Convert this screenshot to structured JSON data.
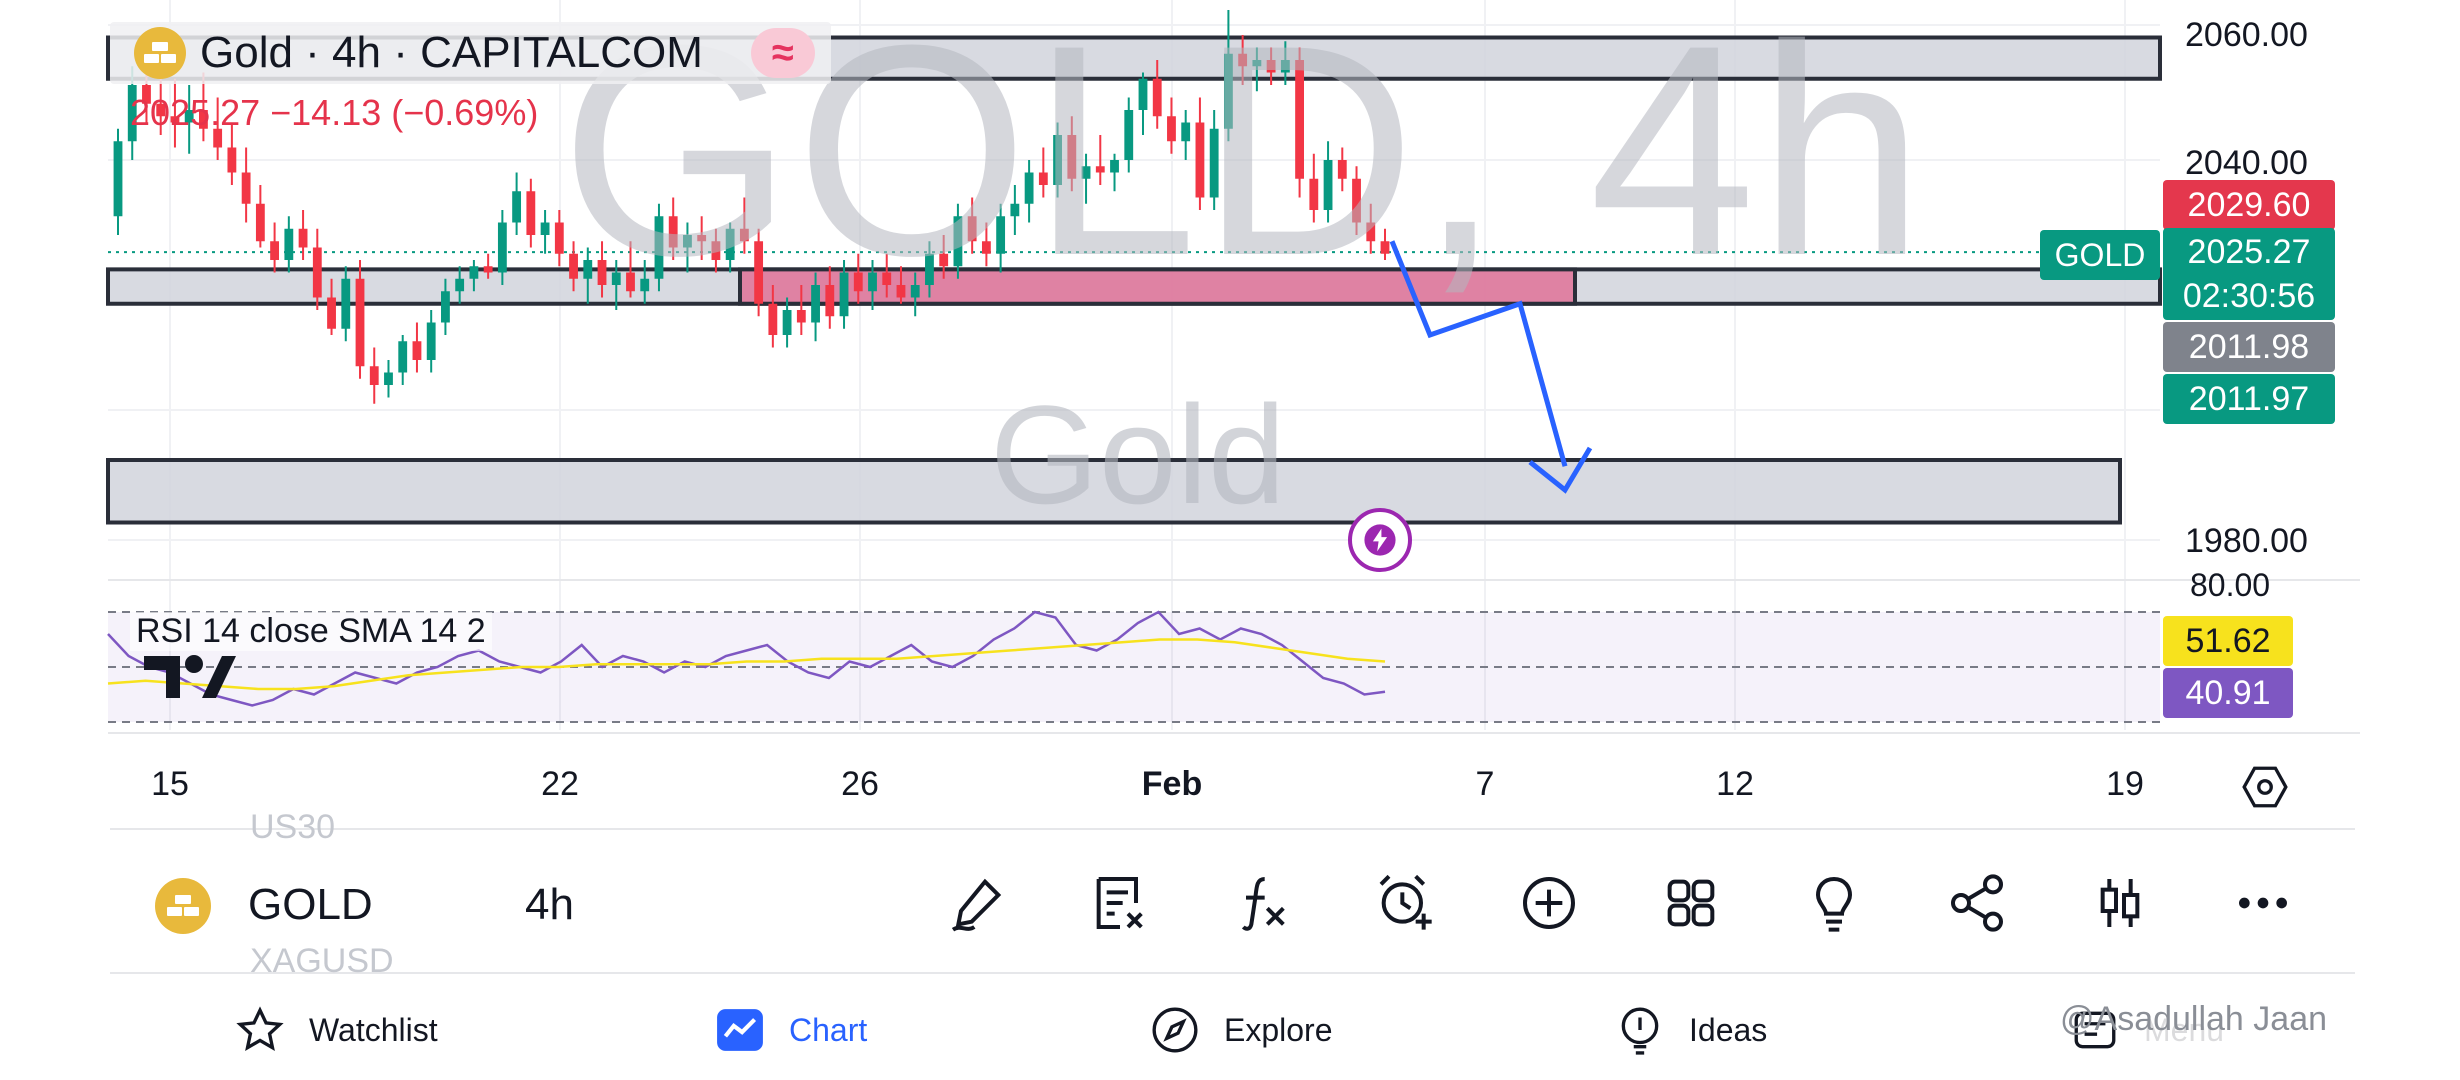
{
  "header": {
    "symbol_title": "Gold · 4h · CAPITALCOM",
    "exchange_badge": "≈",
    "price_change": "2025.27  −14.13 (−0.69%)"
  },
  "watermark": {
    "main": "GOLD, 4h",
    "sub": "Gold"
  },
  "price_scale": {
    "ticks": [
      "2060.00",
      "2040.00",
      "1980.00"
    ],
    "bid_price": "2029.60",
    "last_price": "2025.27",
    "countdown": "02:30:56",
    "symbol_tag": "GOLD",
    "gray_level": "2011.98",
    "green_level": "2011.97"
  },
  "rsi": {
    "label": "RSI 14 close SMA 14 2",
    "top_tick": "80.00",
    "sma_value": "51.62",
    "rsi_value": "40.91"
  },
  "time_axis": {
    "labels": [
      "15",
      "22",
      "26",
      "Feb",
      "7",
      "12",
      "19"
    ]
  },
  "toolbar": {
    "symbol": "GOLD",
    "interval": "4h",
    "ghost_above": "US30",
    "ghost_below": "XAGUSD",
    "icons": [
      "draw-icon",
      "object-tree-icon",
      "indicators-icon",
      "alert-icon",
      "add-icon",
      "layouts-icon",
      "ideas-bulb-icon",
      "share-icon",
      "chart-type-icon",
      "more-icon"
    ]
  },
  "nav": {
    "watchlist": "Watchlist",
    "chart": "Chart",
    "explore": "Explore",
    "ideas": "Ideas",
    "menu": "Menu"
  },
  "credit": "@Asadullah Jaan",
  "colors": {
    "up": "#089981",
    "down": "#f23645",
    "zone_pink": "#e0789c",
    "zone_gray": "#d1d4dc",
    "arrow": "#2962ff",
    "rsi_line": "#7e57c2",
    "rsi_sma": "#f7e21d"
  },
  "chart_data": {
    "type": "candlestick",
    "title": "Gold · 4h · CAPITALCOM",
    "ylim": [
      1976,
      2064
    ],
    "yticks": [
      2060,
      2040,
      1980
    ],
    "candles": [
      [
        2031,
        2045,
        2028,
        2043
      ],
      [
        2043,
        2055,
        2040,
        2052
      ],
      [
        2052,
        2058,
        2046,
        2049
      ],
      [
        2049,
        2055,
        2044,
        2047
      ],
      [
        2047,
        2053,
        2042,
        2046
      ],
      [
        2046,
        2052,
        2041,
        2048
      ],
      [
        2048,
        2054,
        2043,
        2045
      ],
      [
        2045,
        2050,
        2040,
        2042
      ],
      [
        2042,
        2046,
        2036,
        2038
      ],
      [
        2038,
        2042,
        2030,
        2033
      ],
      [
        2033,
        2036,
        2026,
        2027
      ],
      [
        2027,
        2030,
        2022,
        2024
      ],
      [
        2024,
        2031,
        2022,
        2029
      ],
      [
        2029,
        2032,
        2024,
        2026
      ],
      [
        2026,
        2029,
        2016,
        2018
      ],
      [
        2018,
        2021,
        2012,
        2013
      ],
      [
        2013,
        2023,
        2011,
        2021
      ],
      [
        2021,
        2024,
        2005,
        2007
      ],
      [
        2007,
        2010,
        2001,
        2004
      ],
      [
        2004,
        2008,
        2002,
        2006
      ],
      [
        2006,
        2012,
        2004,
        2011
      ],
      [
        2011,
        2014,
        2006,
        2008
      ],
      [
        2008,
        2016,
        2006,
        2014
      ],
      [
        2014,
        2021,
        2012,
        2019
      ],
      [
        2019,
        2023,
        2017,
        2021
      ],
      [
        2021,
        2024,
        2019,
        2023
      ],
      [
        2023,
        2025,
        2021,
        2022
      ],
      [
        2022,
        2032,
        2020,
        2030
      ],
      [
        2030,
        2038,
        2028,
        2035
      ],
      [
        2035,
        2037,
        2026,
        2028
      ],
      [
        2028,
        2032,
        2025,
        2030
      ],
      [
        2030,
        2032,
        2023,
        2025
      ],
      [
        2025,
        2027,
        2019,
        2021
      ],
      [
        2021,
        2026,
        2017,
        2024
      ],
      [
        2024,
        2027,
        2018,
        2020
      ],
      [
        2020,
        2024,
        2016,
        2022
      ],
      [
        2022,
        2027,
        2018,
        2019
      ],
      [
        2019,
        2024,
        2017,
        2021
      ],
      [
        2021,
        2033,
        2019,
        2031
      ],
      [
        2031,
        2034,
        2024,
        2026
      ],
      [
        2026,
        2030,
        2022,
        2028
      ],
      [
        2028,
        2031,
        2024,
        2027
      ],
      [
        2027,
        2029,
        2022,
        2024
      ],
      [
        2024,
        2030,
        2022,
        2029
      ],
      [
        2029,
        2034,
        2025,
        2027
      ],
      [
        2027,
        2029,
        2015,
        2017
      ],
      [
        2017,
        2020,
        2010,
        2012
      ],
      [
        2012,
        2018,
        2010,
        2016
      ],
      [
        2016,
        2020,
        2012,
        2014
      ],
      [
        2014,
        2022,
        2011,
        2020
      ],
      [
        2020,
        2023,
        2013,
        2015
      ],
      [
        2015,
        2024,
        2013,
        2022
      ],
      [
        2022,
        2025,
        2017,
        2019
      ],
      [
        2019,
        2024,
        2016,
        2022
      ],
      [
        2022,
        2025,
        2018,
        2020
      ],
      [
        2020,
        2023,
        2017,
        2018
      ],
      [
        2018,
        2022,
        2015,
        2020
      ],
      [
        2020,
        2027,
        2018,
        2025
      ],
      [
        2025,
        2028,
        2021,
        2023
      ],
      [
        2023,
        2033,
        2021,
        2031
      ],
      [
        2031,
        2034,
        2025,
        2027
      ],
      [
        2027,
        2030,
        2023,
        2025
      ],
      [
        2025,
        2033,
        2022,
        2031
      ],
      [
        2031,
        2036,
        2028,
        2033
      ],
      [
        2033,
        2040,
        2030,
        2038
      ],
      [
        2038,
        2042,
        2034,
        2036
      ],
      [
        2036,
        2046,
        2034,
        2044
      ],
      [
        2044,
        2047,
        2035,
        2037
      ],
      [
        2037,
        2041,
        2033,
        2039
      ],
      [
        2039,
        2044,
        2036,
        2038
      ],
      [
        2038,
        2041,
        2035,
        2040
      ],
      [
        2040,
        2050,
        2038,
        2048
      ],
      [
        2048,
        2054,
        2044,
        2053
      ],
      [
        2053,
        2056,
        2045,
        2047
      ],
      [
        2047,
        2050,
        2041,
        2043
      ],
      [
        2043,
        2048,
        2040,
        2046
      ],
      [
        2046,
        2050,
        2032,
        2034
      ],
      [
        2034,
        2048,
        2032,
        2045
      ],
      [
        2045,
        2064,
        2043,
        2057
      ],
      [
        2057,
        2060,
        2052,
        2055
      ],
      [
        2055,
        2058,
        2051,
        2056
      ],
      [
        2056,
        2058,
        2052,
        2054
      ],
      [
        2054,
        2059,
        2052,
        2056
      ],
      [
        2056,
        2058,
        2034,
        2037
      ],
      [
        2037,
        2041,
        2030,
        2032
      ],
      [
        2032,
        2043,
        2030,
        2040
      ],
      [
        2040,
        2042,
        2035,
        2037
      ],
      [
        2037,
        2039,
        2028,
        2030
      ],
      [
        2030,
        2033,
        2025,
        2027
      ],
      [
        2027,
        2029,
        2024,
        2025
      ]
    ],
    "rsi": [
      62,
      54,
      50,
      48,
      44,
      40,
      38,
      36,
      38,
      42,
      40,
      44,
      48,
      46,
      44,
      48,
      50,
      54,
      56,
      52,
      50,
      48,
      52,
      58,
      50,
      54,
      52,
      48,
      52,
      50,
      54,
      56,
      58,
      52,
      48,
      46,
      52,
      50,
      54,
      58,
      52,
      50,
      54,
      60,
      64,
      70,
      68,
      58,
      56,
      60,
      66,
      70,
      62,
      64,
      60,
      64,
      62,
      58,
      52,
      46,
      44,
      40,
      41
    ],
    "rsi_sma": [
      44,
      45,
      44,
      43,
      42,
      42,
      43,
      45,
      47,
      48,
      49,
      50,
      50,
      51,
      51,
      51,
      51,
      52,
      52,
      53,
      53,
      53,
      54,
      55,
      56,
      57,
      58,
      59,
      60,
      60,
      59,
      57,
      55,
      53,
      52
    ]
  }
}
